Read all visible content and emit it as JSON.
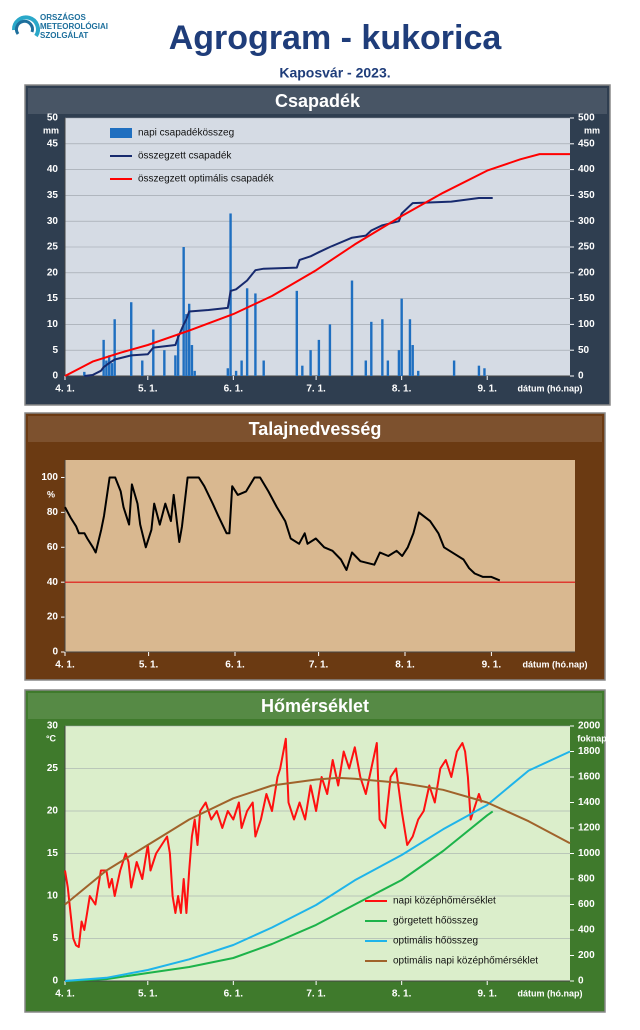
{
  "header": {
    "logo_lines": [
      "ORSZÁGOS",
      "METEOROLÓGIAI",
      "SZOLGÁLAT"
    ],
    "title": "Agrogram - kukorica",
    "subtitle": "Kaposvár - 2023."
  },
  "chart_data": [
    {
      "type": "combo",
      "title": "Csapadék",
      "y_unit": "mm",
      "y2_unit": "mm",
      "x_label": "dátum (hó.nap)",
      "background": "#2f3e50",
      "plot_background": "#d5dbe4",
      "legend": "upper left",
      "grid": true,
      "xlim": [
        0,
        183
      ],
      "xticks": [
        {
          "value": 0,
          "label": "4. 1."
        },
        {
          "value": 30,
          "label": "5. 1."
        },
        {
          "value": 61,
          "label": "6. 1."
        },
        {
          "value": 91,
          "label": "7. 1."
        },
        {
          "value": 122,
          "label": "8. 1."
        },
        {
          "value": 153,
          "label": "9. 1."
        }
      ],
      "ylim": [
        0,
        50
      ],
      "yticks": [
        0,
        5,
        10,
        15,
        20,
        25,
        30,
        35,
        40,
        45,
        50
      ],
      "y2lim": [
        0,
        500
      ],
      "y2ticks": [
        0,
        50,
        100,
        150,
        200,
        250,
        300,
        350,
        400,
        450,
        500
      ],
      "series": [
        {
          "name": "napi csapadékösszeg",
          "type": "bar",
          "color": "#1f6fc0",
          "x": [
            7,
            14,
            15,
            16,
            17,
            18,
            24,
            28,
            32,
            36,
            40,
            41,
            43,
            44,
            45,
            46,
            47,
            59,
            60,
            62,
            64,
            66,
            69,
            72,
            84,
            86,
            89,
            92,
            96,
            104,
            109,
            111,
            115,
            117,
            121,
            122,
            125,
            126,
            128,
            141,
            150,
            152
          ],
          "values": [
            0.8,
            7,
            3,
            4,
            2.5,
            11,
            14.3,
            3,
            9,
            5,
            4,
            8,
            25,
            12,
            14,
            6,
            1,
            1.5,
            31.5,
            1,
            3,
            17,
            16,
            3,
            16.5,
            2,
            5,
            7,
            10,
            18.5,
            3,
            10.5,
            11,
            3,
            5,
            15,
            11,
            6,
            1,
            3,
            2,
            1.5
          ]
        },
        {
          "name": "összegzett csapadék",
          "type": "line",
          "axis": "y2",
          "color": "#172a6e",
          "x": [
            7,
            10,
            13,
            14,
            16,
            18,
            24,
            30,
            32,
            40,
            41,
            43,
            44,
            45,
            52,
            59,
            60,
            62,
            66,
            69,
            72,
            84,
            85,
            89,
            92,
            96,
            104,
            109,
            111,
            115,
            121,
            122,
            125,
            126,
            140,
            150,
            155
          ],
          "values": [
            0,
            2,
            10,
            17,
            25,
            32,
            40,
            42,
            55,
            60,
            75,
            100,
            110,
            125,
            128,
            132,
            165,
            168,
            185,
            205,
            208,
            210,
            225,
            232,
            240,
            250,
            268,
            272,
            282,
            292,
            300,
            315,
            330,
            335,
            338,
            345,
            345
          ]
        },
        {
          "name": "összegzett optimális  csapadék",
          "type": "line",
          "axis": "y2",
          "color": "#ff0000",
          "x": [
            0,
            10,
            20,
            30,
            45,
            61,
            75,
            91,
            105,
            122,
            137,
            153,
            165,
            172,
            183
          ],
          "values": [
            0,
            28,
            45,
            60,
            88,
            120,
            155,
            205,
            255,
            310,
            355,
            398,
            420,
            430,
            430
          ]
        }
      ]
    },
    {
      "type": "line",
      "title": "Talajnedvesség",
      "y_unit": "%",
      "x_label": "dátum (hó.nap)",
      "background": "#6b3a12",
      "plot_background": "#d9b890",
      "grid": false,
      "xlim": [
        0,
        183
      ],
      "xticks": [
        {
          "value": 0,
          "label": "4. 1."
        },
        {
          "value": 30,
          "label": "5. 1."
        },
        {
          "value": 61,
          "label": "6. 1."
        },
        {
          "value": 91,
          "label": "7. 1."
        },
        {
          "value": 122,
          "label": "8. 1."
        },
        {
          "value": 153,
          "label": "9. 1."
        }
      ],
      "ylim": [
        0,
        110
      ],
      "yticks": [
        0,
        20,
        40,
        60,
        80,
        100
      ],
      "threshold": {
        "value": 40,
        "color": "#e01010"
      },
      "series": [
        {
          "type": "line",
          "color": "#000000",
          "x": [
            0,
            2,
            4,
            5,
            7,
            8,
            10,
            11,
            13,
            14,
            16,
            18,
            20,
            21,
            23,
            24,
            26,
            27,
            29,
            31,
            32,
            34,
            36,
            38,
            39,
            41,
            42,
            44,
            45,
            48,
            50,
            53,
            55,
            58,
            59,
            60,
            62,
            65,
            68,
            70,
            73,
            76,
            79,
            81,
            84,
            86,
            87,
            90,
            93,
            96,
            99,
            101,
            103,
            106,
            111,
            113,
            116,
            119,
            121,
            123,
            125,
            127,
            131,
            134,
            136,
            140,
            143,
            145,
            147,
            150,
            153,
            156
          ],
          "values": [
            83,
            77,
            72,
            68,
            68,
            65,
            60,
            57,
            70,
            78,
            100,
            100,
            92,
            83,
            73,
            96,
            85,
            73,
            60,
            70,
            85,
            73,
            85,
            75,
            90,
            63,
            72,
            100,
            100,
            100,
            95,
            85,
            78,
            68,
            68,
            95,
            90,
            92,
            100,
            100,
            92,
            83,
            75,
            65,
            62,
            68,
            62,
            65,
            60,
            58,
            53,
            47,
            57,
            52,
            50,
            57,
            55,
            58,
            55,
            60,
            68,
            80,
            75,
            68,
            60,
            56,
            53,
            48,
            45,
            43,
            43,
            41
          ]
        }
      ]
    },
    {
      "type": "line",
      "title": "Hőmérséklet",
      "y_unit": "°C",
      "y2_unit": "foknap",
      "x_label": "dátum (hó.nap)",
      "background": "#3f7a2c",
      "plot_background": "#dbeecb",
      "legend": "lower right",
      "grid": true,
      "xlim": [
        0,
        183
      ],
      "xticks": [
        {
          "value": 0,
          "label": "4. 1."
        },
        {
          "value": 30,
          "label": "5. 1."
        },
        {
          "value": 61,
          "label": "6. 1."
        },
        {
          "value": 91,
          "label": "7. 1."
        },
        {
          "value": 122,
          "label": "8. 1."
        },
        {
          "value": 153,
          "label": "9. 1."
        }
      ],
      "ylim": [
        0,
        30
      ],
      "yticks": [
        0,
        5,
        10,
        15,
        20,
        25,
        30
      ],
      "y2lim": [
        0,
        2000
      ],
      "y2ticks": [
        0,
        200,
        400,
        600,
        800,
        1000,
        1200,
        1400,
        1600,
        1800,
        2000
      ],
      "series": [
        {
          "name": "napi középhőmérséklet",
          "type": "line",
          "color": "#ff1010",
          "x": [
            0,
            1,
            2,
            3,
            4,
            5,
            6,
            7,
            8,
            9,
            11,
            12,
            13,
            15,
            16,
            17,
            18,
            20,
            22,
            23,
            24,
            26,
            28,
            29,
            30,
            31,
            33,
            35,
            37,
            38,
            39,
            40,
            41,
            42,
            43,
            44,
            45,
            46,
            47,
            48,
            49,
            51,
            53,
            55,
            57,
            59,
            61,
            63,
            64,
            66,
            68,
            69,
            71,
            73,
            75,
            77,
            78,
            80,
            81,
            83,
            85,
            87,
            89,
            91,
            93,
            95,
            97,
            99,
            101,
            103,
            105,
            107,
            109,
            111,
            113,
            114,
            116,
            118,
            120,
            122,
            124,
            126,
            128,
            130,
            132,
            134,
            136,
            138,
            140,
            142,
            144,
            145,
            146,
            147,
            148,
            150,
            151
          ],
          "values": [
            13,
            11,
            8,
            5,
            4.2,
            4,
            7,
            6,
            8,
            10,
            9,
            11,
            13,
            13,
            11,
            12,
            10,
            13,
            15,
            14,
            11,
            14,
            12,
            14,
            16,
            13,
            15,
            16,
            17,
            15,
            10,
            8,
            10,
            8,
            12,
            8,
            13,
            17,
            19,
            16,
            20,
            21,
            19,
            20,
            18,
            20,
            19,
            21,
            18,
            20,
            21,
            17,
            19,
            22,
            20,
            24,
            25,
            28.5,
            21,
            19,
            21,
            19,
            23,
            20,
            24,
            22,
            26,
            23,
            27,
            25,
            27.5,
            24,
            22,
            25,
            28,
            19,
            18,
            24,
            25,
            20,
            16,
            17,
            19,
            20,
            23,
            21,
            25,
            26,
            24,
            27,
            28,
            27,
            24,
            19,
            20,
            22,
            21
          ]
        },
        {
          "name": "görgetett hőösszeg",
          "type": "line",
          "axis": "y2",
          "color": "#1db34a",
          "x": [
            0,
            15,
            30,
            45,
            61,
            75,
            91,
            105,
            122,
            137,
            153,
            155
          ],
          "values": [
            0,
            15,
            63,
            110,
            180,
            290,
            440,
            600,
            792,
            1020,
            1300,
            1330
          ]
        },
        {
          "name": "optimális hőösszeg",
          "type": "line",
          "axis": "y2",
          "color": "#1fb4ea",
          "x": [
            0,
            15,
            30,
            45,
            61,
            75,
            91,
            105,
            122,
            137,
            153,
            168,
            183
          ],
          "values": [
            0,
            25,
            86,
            170,
            282,
            420,
            596,
            790,
            988,
            1190,
            1380,
            1650,
            1800
          ]
        },
        {
          "name": "optimális napi középhőmérséklet",
          "type": "line",
          "color": "#a0632b",
          "x": [
            0,
            15,
            30,
            45,
            61,
            75,
            91,
            99,
            105,
            122,
            137,
            153,
            168,
            183
          ],
          "values": [
            9,
            13,
            16,
            19,
            21.5,
            23,
            23.7,
            23.9,
            23.8,
            23.3,
            22.5,
            21,
            18.8,
            16.2
          ]
        }
      ]
    }
  ]
}
